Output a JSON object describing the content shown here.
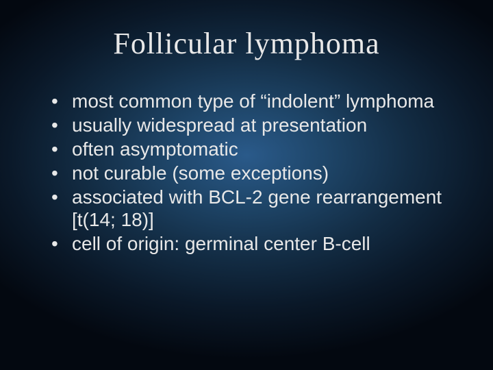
{
  "slide": {
    "title": "Follicular lymphoma",
    "bullets": [
      "most common type of “indolent” lymphoma",
      "usually widespread at presentation",
      "often asymptomatic",
      "not curable (some exceptions)",
      "associated with BCL-2 gene rearrangement [t(14; 18)]",
      "cell of origin: germinal center B-cell"
    ],
    "background": {
      "type": "radial-gradient",
      "center_color": "#2a5a8a",
      "mid_color": "#132d45",
      "edge_color": "#030810"
    },
    "typography": {
      "title_font": "Georgia, serif",
      "title_size_pt": 33,
      "title_color": "#e8e8e8",
      "body_font": "Arial, sans-serif",
      "body_size_pt": 21,
      "body_color": "#e8e8e8"
    }
  }
}
